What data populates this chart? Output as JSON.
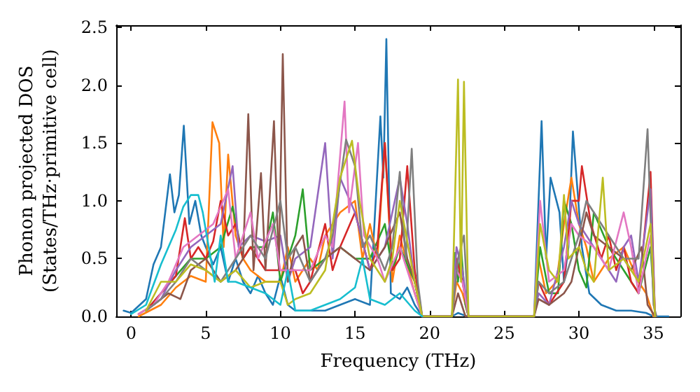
{
  "chart_data": {
    "type": "line",
    "xlabel": "Frequency (THz)",
    "ylabel": "Phonon projected DOS\n(States/THz·primitive cell)",
    "xlim": [
      -1,
      36.8
    ],
    "ylim": [
      0,
      2.52
    ],
    "xticks": [
      0,
      5,
      10,
      15,
      20,
      25,
      30,
      35
    ],
    "yticks": [
      {
        "value": 0,
        "label": "0.0"
      },
      {
        "value": 0.5,
        "label": "0.5"
      },
      {
        "value": 1,
        "label": "1.0"
      },
      {
        "value": 1.5,
        "label": "1.5"
      },
      {
        "value": 2,
        "label": "2.0"
      },
      {
        "value": 2.5,
        "label": "2.5"
      }
    ],
    "grid": false,
    "marker": "none",
    "line_style": "solid",
    "series": [
      {
        "color": "#1f77b4",
        "x": [
          -0.5,
          0,
          1,
          1.5,
          2,
          2.6,
          2.9,
          3.2,
          3.53,
          3.9,
          4.3,
          4.7,
          5,
          5.5,
          6,
          6.5,
          7,
          7.5,
          8,
          8.5,
          9,
          9.5,
          10,
          10.5,
          11,
          12,
          13,
          14,
          15,
          16,
          16.7,
          16.9,
          17.1,
          17.4,
          18,
          18.5,
          19,
          19.5,
          21.5,
          21.9,
          22.5,
          27,
          27.5,
          27.8,
          28.1,
          28.7,
          29,
          29.3,
          29.6,
          30.2,
          30.7,
          31.5,
          32.5,
          33.5,
          34.5,
          35,
          36
        ],
        "values": [
          0.05,
          0.03,
          0.15,
          0.45,
          0.6,
          1.23,
          0.9,
          1.05,
          1.65,
          0.8,
          1.0,
          0.7,
          0.6,
          0.45,
          0.6,
          0.3,
          0.5,
          0.3,
          0.2,
          0.35,
          0.2,
          0.1,
          0.35,
          0.1,
          0.05,
          0.05,
          0.05,
          0.1,
          0.15,
          0.1,
          1.73,
          1.2,
          2.4,
          0.2,
          0.15,
          0.25,
          0.1,
          0,
          0,
          0.03,
          0,
          0,
          1.69,
          0.5,
          1.2,
          0.9,
          0.3,
          0.6,
          1.6,
          0.6,
          0.2,
          0.1,
          0.05,
          0.05,
          0.03,
          0,
          0
        ]
      },
      {
        "color": "#ff7f0e",
        "x": [
          0.5,
          2,
          3,
          4,
          5,
          5.45,
          5.9,
          6.2,
          6.5,
          7,
          7.5,
          8,
          9,
          10,
          10.5,
          11,
          12,
          12.5,
          13,
          14,
          15,
          15.5,
          16,
          16.5,
          17,
          17.5,
          18,
          19,
          19.5,
          21.5,
          21.8,
          22.2,
          22.6,
          27,
          27.3,
          27.8,
          28.5,
          29,
          29.5,
          30,
          30.5,
          31,
          32,
          33,
          34,
          34.5,
          35
        ],
        "values": [
          0,
          0.1,
          0.25,
          0.35,
          0.3,
          1.68,
          1.5,
          0.6,
          1.4,
          0.7,
          0.5,
          0.4,
          0.3,
          0.3,
          0.6,
          0.3,
          0.5,
          0.4,
          0.7,
          0.9,
          1.0,
          0.5,
          0.8,
          0.5,
          1.5,
          0.3,
          0.7,
          0.2,
          0,
          0,
          0.3,
          0.2,
          0,
          0,
          0.5,
          0.2,
          0.3,
          0.8,
          1.2,
          0.8,
          0.6,
          0.3,
          0.5,
          0.6,
          0.3,
          0.2,
          0
        ]
      },
      {
        "color": "#2ca02c",
        "x": [
          1,
          2,
          3,
          4,
          5,
          6,
          6.8,
          7.5,
          8,
          9,
          9.5,
          10,
          11,
          11.5,
          12,
          13,
          14,
          15,
          16,
          17,
          17.5,
          18,
          19,
          19.5,
          21.5,
          21.7,
          21.9,
          22.1,
          22.4,
          22.6,
          27,
          27.4,
          28,
          28.6,
          29,
          29.5,
          30,
          30.5,
          31,
          32,
          33,
          34,
          34.8,
          35.1
        ],
        "values": [
          0.05,
          0.2,
          0.35,
          0.5,
          0.5,
          0.6,
          0.95,
          0.5,
          0.6,
          0.6,
          0.9,
          0.3,
          0.7,
          1.1,
          0.4,
          0.5,
          0.6,
          0.5,
          0.5,
          0.8,
          0.4,
          0.6,
          0.3,
          0,
          0,
          0.55,
          0.3,
          0.6,
          0.1,
          0,
          0,
          0.6,
          0.2,
          0.2,
          1.0,
          0.8,
          0.4,
          0.25,
          0.9,
          0.6,
          0.4,
          0.2,
          0.6,
          0
        ]
      },
      {
        "color": "#d62728",
        "x": [
          1,
          2,
          3,
          3.6,
          4,
          4.5,
          5,
          5.5,
          6,
          6.5,
          7,
          7.5,
          8,
          9,
          10,
          11,
          11.5,
          12,
          13,
          13.5,
          14,
          15,
          16,
          16.5,
          17,
          17.5,
          18,
          18.5,
          19,
          19.5,
          21.5,
          21.8,
          22.2,
          22.6,
          27,
          27.3,
          28,
          29,
          29.5,
          30,
          30.2,
          30.8,
          31.5,
          32,
          32.5,
          33,
          33.5,
          34,
          34.8,
          35.1
        ],
        "values": [
          0.05,
          0.2,
          0.35,
          0.85,
          0.5,
          0.6,
          0.5,
          0.65,
          1.0,
          0.7,
          0.8,
          0.5,
          0.6,
          0.4,
          0.4,
          0.4,
          0.2,
          0.3,
          0.8,
          0.4,
          0.6,
          0.9,
          0.4,
          0.6,
          1.5,
          0.4,
          0.5,
          1.3,
          0.4,
          0,
          0,
          0.5,
          0.3,
          0,
          0,
          0.3,
          0.1,
          0.3,
          1.0,
          1.0,
          1.3,
          0.8,
          0.5,
          0.7,
          0.4,
          0.6,
          0.3,
          0.2,
          1.25,
          0
        ]
      },
      {
        "color": "#9467bd",
        "x": [
          1,
          2,
          3,
          4,
          5,
          6,
          6.8,
          7.2,
          8,
          9,
          10,
          10.5,
          11,
          12,
          13,
          13.5,
          14,
          15,
          16,
          17,
          18,
          18.5,
          19,
          19.5,
          21.5,
          21.8,
          22.2,
          22.6,
          27,
          27.3,
          28,
          29,
          29.5,
          30,
          31,
          32,
          32.5,
          33,
          33.5,
          34,
          34.8,
          35.1
        ],
        "values": [
          0.05,
          0.15,
          0.4,
          0.6,
          0.7,
          0.8,
          1.3,
          0.6,
          0.7,
          0.65,
          0.7,
          0.3,
          0.5,
          0.6,
          1.5,
          0.5,
          1.2,
          0.9,
          0.4,
          0.6,
          1.2,
          0.8,
          0.3,
          0,
          0,
          0.6,
          0.4,
          0,
          0,
          0.2,
          0.1,
          0.6,
          1.0,
          0.8,
          0.6,
          0.4,
          0.3,
          0.6,
          0.7,
          0.3,
          1.1,
          0
        ]
      },
      {
        "color": "#8c564b",
        "x": [
          0.5,
          1.5,
          2.5,
          3.3,
          4,
          5,
          6,
          7,
          7.5,
          7.85,
          8.2,
          8.7,
          9,
          9.57,
          9.9,
          10.16,
          10.5,
          11,
          11.5,
          12,
          13,
          14,
          15,
          16,
          17,
          18,
          18.5,
          19,
          19.5,
          21.5,
          21.9,
          22.4,
          27,
          27.3,
          28,
          29,
          29.5,
          30.5,
          31,
          32,
          33,
          33.5,
          34.2,
          34.6,
          35.1
        ],
        "values": [
          0.02,
          0.1,
          0.2,
          0.15,
          0.4,
          0.5,
          0.3,
          0.4,
          0.5,
          1.75,
          0.4,
          1.24,
          0.4,
          1.69,
          0.4,
          2.27,
          0.3,
          0.6,
          0.7,
          0.3,
          0.5,
          0.6,
          0.5,
          0.4,
          0.6,
          0.9,
          0.5,
          0.3,
          0,
          0,
          0.2,
          0,
          0,
          0.15,
          0.1,
          0.2,
          0.3,
          0.9,
          0.7,
          0.6,
          0.5,
          0.4,
          0.6,
          0.1,
          0
        ]
      },
      {
        "color": "#e377c2",
        "x": [
          0.5,
          1.5,
          2.5,
          3.5,
          4.5,
          5.5,
          6.5,
          7,
          8,
          8.5,
          9.5,
          10,
          11,
          12,
          13,
          13.5,
          14.3,
          14.6,
          15.2,
          15.6,
          16.5,
          17,
          18,
          19,
          19.5,
          21.5,
          21.8,
          22.2,
          22.6,
          27,
          27.4,
          28,
          29,
          29.5,
          30,
          31,
          32,
          33,
          33.5,
          34,
          34.8,
          35.1
        ],
        "values": [
          0.02,
          0.1,
          0.3,
          0.6,
          0.7,
          0.8,
          1.1,
          0.5,
          0.9,
          0.5,
          0.8,
          0.4,
          0.4,
          0.4,
          0.7,
          0.6,
          1.86,
          0.9,
          1.5,
          0.7,
          0.5,
          0.3,
          0.6,
          0.2,
          0,
          0,
          0.4,
          0.3,
          0,
          0,
          1.0,
          0.3,
          0.4,
          0.8,
          0.7,
          0.6,
          0.4,
          0.9,
          0.6,
          0.2,
          0.7,
          0
        ]
      },
      {
        "color": "#7f7f7f",
        "x": [
          1,
          2,
          3,
          4,
          5,
          6,
          7,
          8,
          9,
          10,
          10.5,
          11,
          12,
          13,
          13.5,
          14.4,
          15,
          15.5,
          16,
          17,
          17.5,
          18,
          18.4,
          18.8,
          19.2,
          19.5,
          21.5,
          21.9,
          22.3,
          22.6,
          27,
          27.3,
          28,
          29,
          30,
          30.5,
          31,
          32,
          33,
          34,
          34.6,
          35,
          35.2
        ],
        "values": [
          0.05,
          0.15,
          0.3,
          0.5,
          0.4,
          0.3,
          0.5,
          0.7,
          0.5,
          1.0,
          0.5,
          0.6,
          0.3,
          0.5,
          0.7,
          1.53,
          1.3,
          0.6,
          0.7,
          0.4,
          0.6,
          1.25,
          0.5,
          1.45,
          0.3,
          0,
          0,
          0.5,
          0.7,
          0,
          0,
          0.3,
          0.2,
          0.3,
          0.7,
          1.0,
          0.9,
          0.7,
          0.5,
          0.5,
          1.62,
          0.1,
          0
        ]
      },
      {
        "color": "#bcbd22",
        "x": [
          1,
          2,
          3,
          4,
          5,
          6,
          7,
          8,
          9,
          10,
          10.5,
          11,
          12,
          13,
          14,
          14.8,
          15.3,
          16,
          17,
          17.5,
          18,
          19,
          19.5,
          21.5,
          21.9,
          22.1,
          22.3,
          22.6,
          27,
          27.4,
          28,
          28.6,
          29,
          29.3,
          30,
          30.5,
          31,
          31.6,
          32,
          33,
          34,
          34.8,
          35.1
        ],
        "values": [
          0.05,
          0.3,
          0.3,
          0.45,
          0.4,
          0.3,
          0.4,
          0.25,
          0.3,
          0.3,
          0.1,
          0.15,
          0.2,
          0.4,
          1.2,
          1.52,
          1.0,
          0.5,
          0.3,
          0.5,
          1.0,
          0.3,
          0,
          0,
          2.05,
          0.3,
          2.03,
          0,
          0,
          0.8,
          0.4,
          0.3,
          1.05,
          0.5,
          0.6,
          0.4,
          0.3,
          1.2,
          0.4,
          0.5,
          0.3,
          0.8,
          0
        ]
      },
      {
        "color": "#17becf",
        "x": [
          0,
          1,
          2,
          3,
          3.5,
          4,
          4.5,
          4.8,
          5.2,
          5.6,
          6,
          6.5,
          7,
          8,
          9,
          10,
          10.5,
          11,
          12,
          13,
          14,
          15,
          15.5,
          16,
          17,
          18,
          19,
          19.5
        ],
        "values": [
          0.02,
          0.1,
          0.45,
          0.75,
          0.95,
          1.05,
          1.05,
          0.9,
          0.6,
          0.3,
          0.7,
          0.3,
          0.3,
          0.25,
          0.2,
          0.1,
          0.4,
          0.05,
          0.05,
          0.1,
          0.15,
          0.25,
          0.5,
          0.15,
          0.1,
          0.2,
          0.05,
          0
        ]
      }
    ]
  }
}
